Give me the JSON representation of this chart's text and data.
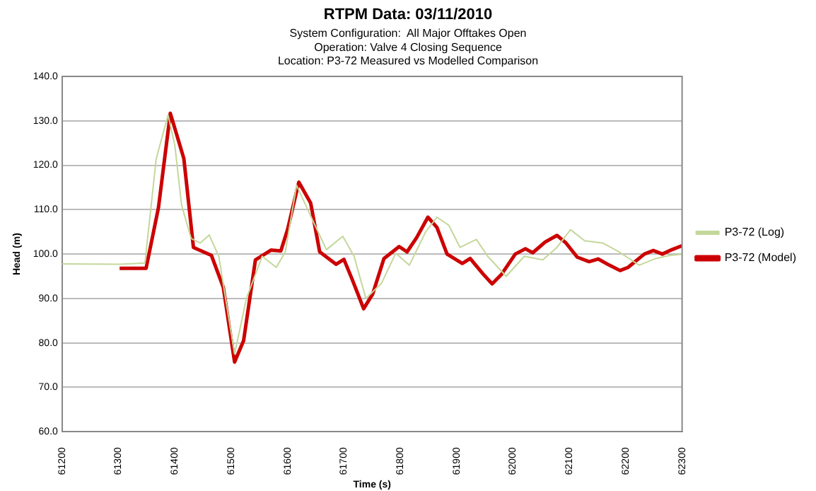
{
  "chart_data": {
    "type": "line",
    "title": "RTPM Data: 03/11/2010",
    "subtitle": "System Configuration:  All Major Offtakes Open\nOperation: Valve 4 Closing Sequence\nLocation: P3-72 Measured vs Modelled Comparison",
    "xlabel": "Time (s)",
    "ylabel": "Head (m)",
    "xlim": [
      61200,
      62300
    ],
    "xticks": [
      61200,
      61300,
      61400,
      61500,
      61600,
      61700,
      61800,
      61900,
      62000,
      62100,
      62200,
      62300
    ],
    "ylim": [
      60,
      140
    ],
    "yticks": [
      {
        "value": 60,
        "label": "60.0"
      },
      {
        "value": 70,
        "label": "70.0"
      },
      {
        "value": 80,
        "label": "80.0"
      },
      {
        "value": 90,
        "label": "90.0"
      },
      {
        "value": 100,
        "label": "100.0"
      },
      {
        "value": 110,
        "label": "110.0"
      },
      {
        "value": 120,
        "label": "120.0"
      },
      {
        "value": 130,
        "label": "130.0"
      },
      {
        "value": 140,
        "label": "140.0"
      }
    ],
    "grid": "y",
    "legend": "right",
    "marker": "none",
    "series": [
      {
        "name": "P3-72 (Log)",
        "color": "#c4d79b",
        "x": [
          61200,
          61302,
          61347,
          61367,
          61388,
          61400,
          61412,
          61429,
          61445,
          61461,
          61478,
          61506,
          61527,
          61555,
          61580,
          61596,
          61616,
          61645,
          61669,
          61698,
          61718,
          61739,
          61767,
          61792,
          61816,
          61845,
          61865,
          61886,
          61906,
          61935,
          61955,
          61988,
          62020,
          62053,
          62078,
          62102,
          62127,
          62159,
          62188,
          62224,
          62253,
          62278,
          62300
        ],
        "values": [
          97.8,
          97.7,
          98,
          121.5,
          131.3,
          124.5,
          111,
          103.5,
          102.5,
          104.3,
          99.5,
          77.5,
          90,
          99.5,
          97,
          100.5,
          115.5,
          107.5,
          101,
          104,
          99.5,
          90,
          93.5,
          100.2,
          97.5,
          105,
          108.3,
          106.5,
          101.5,
          103.3,
          99.5,
          95,
          99.5,
          98.7,
          101.5,
          105.5,
          103,
          102.5,
          100.5,
          97.5,
          99,
          99.7,
          100
        ]
      },
      {
        "name": "P3-72 (Model)",
        "color": "#cc0000",
        "x": [
          61302,
          61349,
          61371,
          61392,
          61416,
          61433,
          61465,
          61486,
          61506,
          61522,
          61543,
          61571,
          61588,
          61600,
          61620,
          61641,
          61657,
          61686,
          61700,
          61714,
          61735,
          61751,
          61771,
          61798,
          61812,
          61829,
          61849,
          61865,
          61883,
          61910,
          61924,
          61947,
          61963,
          61980,
          62004,
          62022,
          62035,
          62057,
          62078,
          62094,
          62114,
          62135,
          62151,
          62171,
          62190,
          62204,
          62233,
          62249,
          62265,
          62282,
          62300
        ],
        "values": [
          96.8,
          96.8,
          110.5,
          131.7,
          121.5,
          101.5,
          99.7,
          92.5,
          75.7,
          80.5,
          98.7,
          100.9,
          100.7,
          105.5,
          116.2,
          111.5,
          100.5,
          97.7,
          98.8,
          94.5,
          87.7,
          91,
          99,
          101.7,
          100.5,
          103.7,
          108.3,
          106,
          100,
          97.9,
          99,
          95.5,
          93.3,
          95.5,
          100,
          101.2,
          100.3,
          102.7,
          104.2,
          102.5,
          99.3,
          98.3,
          98.9,
          97.5,
          96.3,
          97,
          100,
          100.8,
          100,
          101,
          101.9
        ]
      }
    ]
  }
}
